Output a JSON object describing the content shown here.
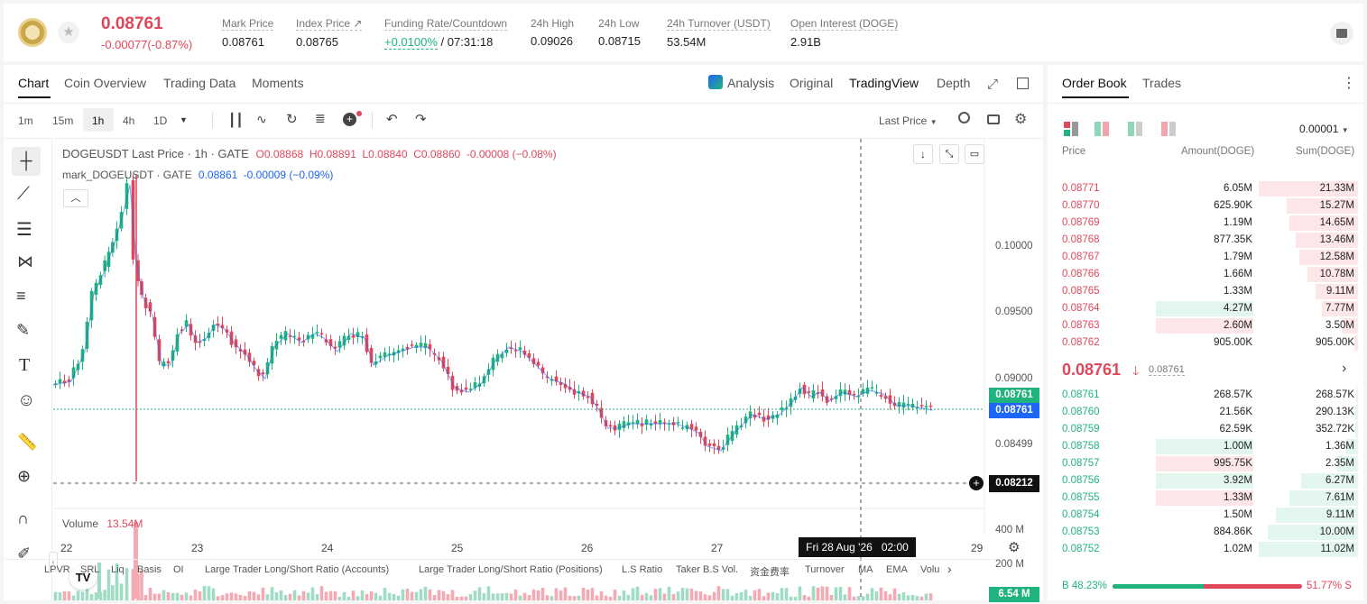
{
  "ticker": {
    "price": "0.08761",
    "change": "-0.00077(-0.87%)",
    "stats": [
      {
        "label": "Mark Price",
        "value": "0.08761"
      },
      {
        "label": "Index Price ↗",
        "value": "0.08765"
      },
      {
        "label": "Funding Rate/Countdown",
        "value_a": "+0.0100%",
        "value_b": " / 07:31:18"
      },
      {
        "label": "24h High",
        "value": "0.09026"
      },
      {
        "label": "24h Low",
        "value": "0.08715"
      },
      {
        "label": "24h Turnover (USDT)",
        "value": "53.54M"
      },
      {
        "label": "Open Interest (DOGE)",
        "value": "2.91B"
      }
    ]
  },
  "chart_tabs": [
    "Chart",
    "Coin Overview",
    "Trading Data",
    "Moments"
  ],
  "view_tabs": {
    "analysis": "Analysis",
    "original": "Original",
    "tradingview": "TradingView",
    "depth": "Depth"
  },
  "timeframes": [
    "1m",
    "15m",
    "1h",
    "4h",
    "1D"
  ],
  "price_type": "Last Price",
  "legend": {
    "main": "DOGEUSDT Last Price · 1h · GATE",
    "o": "O0.08868",
    "h": "H0.08891",
    "l": "L0.08840",
    "c": "C0.08860",
    "chg": "-0.00008 (−0.08%)",
    "mark": "mark_DOGEUSDT · GATE",
    "mark_val": "0.08861",
    "mark_chg": "-0.00009 (−0.09%)"
  },
  "price_axis": [
    "0.10000",
    "0.09500",
    "0.09000",
    "0.08499"
  ],
  "price_tags": {
    "mark": "0.08761",
    "last": "0.08761",
    "cursor": "0.08212"
  },
  "volume": {
    "label": "Volume",
    "value": "13.54M",
    "axis": [
      "400 M",
      "200 M"
    ],
    "tag": "6.54 M"
  },
  "time_axis": [
    "22",
    "23",
    "24",
    "25",
    "26",
    "27",
    "29"
  ],
  "crosshair_time": "Fri 28 Aug '26   02:00",
  "indicators": [
    "LPVR",
    "SRL",
    "Liq",
    "Basis",
    "OI",
    "Large Trader Long/Short Ratio (Accounts)",
    "Large Trader Long/Short Ratio (Positions)",
    "L.S Ratio",
    "Taker B.S Vol.",
    "资金费率",
    "Turnover",
    "MA",
    "EMA",
    "Volu"
  ],
  "orderbook": {
    "tabs": [
      "Order Book",
      "Trades"
    ],
    "precision": "0.00001",
    "headers": [
      "Price",
      "Amount(DOGE)",
      "Sum(DOGE)"
    ],
    "asks": [
      {
        "price": "0.08771",
        "amount": "6.05M",
        "sum": "21.33M",
        "depth": 1.0,
        "big": 0
      },
      {
        "price": "0.08770",
        "amount": "625.90K",
        "sum": "15.27M",
        "depth": 0.72,
        "big": 0
      },
      {
        "price": "0.08769",
        "amount": "1.19M",
        "sum": "14.65M",
        "depth": 0.69,
        "big": 0
      },
      {
        "price": "0.08768",
        "amount": "877.35K",
        "sum": "13.46M",
        "depth": 0.63,
        "big": 0
      },
      {
        "price": "0.08767",
        "amount": "1.79M",
        "sum": "12.58M",
        "depth": 0.59,
        "big": 0
      },
      {
        "price": "0.08766",
        "amount": "1.66M",
        "sum": "10.78M",
        "depth": 0.51,
        "big": 0
      },
      {
        "price": "0.08765",
        "amount": "1.33M",
        "sum": "9.11M",
        "depth": 0.43,
        "big": 0
      },
      {
        "price": "0.08764",
        "amount": "4.27M",
        "sum": "7.77M",
        "depth": 0.36,
        "big": 1
      },
      {
        "price": "0.08763",
        "amount": "2.60M",
        "sum": "3.50M",
        "depth": 0.16,
        "big": 2
      },
      {
        "price": "0.08762",
        "amount": "905.00K",
        "sum": "905.00K",
        "depth": 0.04,
        "big": 0
      }
    ],
    "mid_price": "0.08761",
    "mid_mark": "0.08761",
    "bids": [
      {
        "price": "0.08761",
        "amount": "268.57K",
        "sum": "268.57K",
        "depth": 0.02,
        "big": 0
      },
      {
        "price": "0.08760",
        "amount": "21.56K",
        "sum": "290.13K",
        "depth": 0.03,
        "big": 0
      },
      {
        "price": "0.08759",
        "amount": "62.59K",
        "sum": "352.72K",
        "depth": 0.03,
        "big": 0
      },
      {
        "price": "0.08758",
        "amount": "1.00M",
        "sum": "1.36M",
        "depth": 0.12,
        "big": 1
      },
      {
        "price": "0.08757",
        "amount": "995.75K",
        "sum": "2.35M",
        "depth": 0.21,
        "big": 2
      },
      {
        "price": "0.08756",
        "amount": "3.92M",
        "sum": "6.27M",
        "depth": 0.57,
        "big": 1
      },
      {
        "price": "0.08755",
        "amount": "1.33M",
        "sum": "7.61M",
        "depth": 0.69,
        "big": 2
      },
      {
        "price": "0.08754",
        "amount": "1.50M",
        "sum": "9.11M",
        "depth": 0.83,
        "big": 0
      },
      {
        "price": "0.08753",
        "amount": "884.86K",
        "sum": "10.00M",
        "depth": 0.91,
        "big": 0
      },
      {
        "price": "0.08752",
        "amount": "1.02M",
        "sum": "11.02M",
        "depth": 1.0,
        "big": 0
      }
    ],
    "buy_ratio": "B 48.23%",
    "sell_ratio": "51.77% S",
    "buy_fraction": 0.4823
  },
  "colors": {
    "up": "#21b37d",
    "down": "#e0475a",
    "accent": "#1e66f5"
  }
}
